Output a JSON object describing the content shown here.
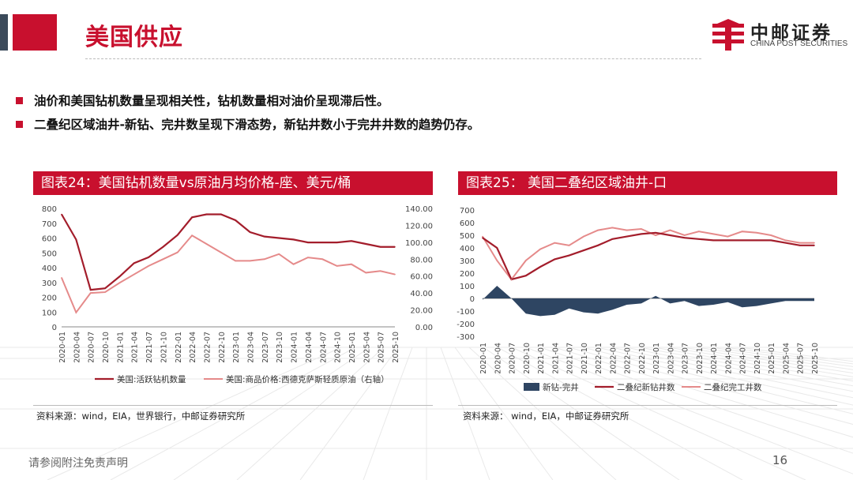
{
  "header": {
    "title": "美国供应",
    "logo_cn": "中邮证券",
    "logo_en": "CHINA POST SECURITIES"
  },
  "bullets": [
    "油价和美国钻机数量呈现相关性，钻机数量相对油价呈现滞后性。",
    "二叠纪区域油井-新钻、完井数呈现下滑态势，新钻井数小于完井井数的趋势仍存。"
  ],
  "footer": {
    "disclaimer": "请参阅附注免责声明",
    "page": "16"
  },
  "colors": {
    "accent": "#c8102e",
    "series_dark_red": "#a31d2b",
    "series_light_red": "#e58a8a",
    "series_navy": "#2e4562"
  },
  "chart_data": [
    {
      "type": "line",
      "title": "图表24：美国钻机数量vs原油月均价格-座、美元/桶",
      "source": "资料来源：wind，EIA，世界银行，中邮证券研究所",
      "x": [
        "2020-01",
        "2020-04",
        "2020-07",
        "2020-10",
        "2021-01",
        "2021-04",
        "2021-07",
        "2021-10",
        "2022-01",
        "2022-04",
        "2022-07",
        "2022-10",
        "2023-01",
        "2023-04",
        "2023-07",
        "2023-10",
        "2024-01",
        "2024-04",
        "2024-07",
        "2024-10",
        "2025-01",
        "2025-04",
        "2025-07",
        "2025-10"
      ],
      "x_tick_labels": [
        "2020-01",
        "2020-04",
        "2020-07",
        "2020-10",
        "2021-01",
        "2021-04",
        "2021-07",
        "2021-10",
        "2022-01",
        "2022-04",
        "2022-07",
        "2022-10",
        "2023-01",
        "2023-04",
        "2023-07",
        "2023-10",
        "2024-01",
        "2024-04",
        "2024-07",
        "2024-10",
        "2025-01",
        "2025-04",
        "2025-07",
        "2025-10"
      ],
      "y_left_range": [
        0,
        800
      ],
      "y_left_ticks": [
        "0",
        "100",
        "200",
        "300",
        "400",
        "500",
        "600",
        "700",
        "800"
      ],
      "y_right_range": [
        0,
        140
      ],
      "y_right_ticks": [
        "0.00",
        "20.00",
        "40.00",
        "60.00",
        "80.00",
        "100.00",
        "120.00",
        "140.00"
      ],
      "grid": false,
      "legend_position": "bottom",
      "series": [
        {
          "name": "美国:活跃钻机数量",
          "axis": "left",
          "values": [
            760,
            590,
            250,
            260,
            340,
            430,
            470,
            540,
            620,
            740,
            760,
            760,
            720,
            640,
            610,
            600,
            590,
            570,
            570,
            570,
            580,
            560,
            540,
            540
          ]
        },
        {
          "name": "美国:商品价格:西德克萨斯轻质原油（右轴）",
          "axis": "right",
          "values": [
            58,
            17,
            40,
            41,
            52,
            62,
            72,
            80,
            88,
            108,
            98,
            88,
            78,
            78,
            80,
            86,
            74,
            82,
            80,
            72,
            74,
            64,
            66,
            62
          ]
        }
      ]
    },
    {
      "type": "line",
      "title": "图表25：  美国二叠纪区域油井-口",
      "source": "资料来源：  wind，EIA，中邮证券研究所",
      "x": [
        "2020-01",
        "2020-04",
        "2020-07",
        "2020-10",
        "2021-01",
        "2021-04",
        "2021-07",
        "2021-10",
        "2022-01",
        "2022-04",
        "2022-07",
        "2022-10",
        "2023-01",
        "2023-04",
        "2023-07",
        "2023-10",
        "2024-01",
        "2024-04",
        "2024-07",
        "2024-10",
        "2025-01",
        "2025-04",
        "2025-07",
        "2025-10"
      ],
      "x_tick_labels": [
        "2020-01",
        "2020-04",
        "2020-07",
        "2020-10",
        "2021-01",
        "2021-04",
        "2021-07",
        "2021-10",
        "2022-01",
        "2022-04",
        "2022-07",
        "2022-10",
        "2023-01",
        "2023-04",
        "2023-07",
        "2023-10",
        "2024-01",
        "2024-04",
        "2024-07",
        "2024-10",
        "2025-01",
        "2025-04",
        "2025-07",
        "2025-10"
      ],
      "y_range": [
        -300,
        700
      ],
      "y_ticks": [
        "-300",
        "-200",
        "-100",
        "0",
        "100",
        "200",
        "300",
        "400",
        "500",
        "600",
        "700"
      ],
      "grid": false,
      "legend_position": "bottom",
      "series": [
        {
          "name": "新钻-完井",
          "kind": "area",
          "values": [
            -10,
            100,
            0,
            -120,
            -140,
            -130,
            -80,
            -110,
            -120,
            -90,
            -50,
            -40,
            20,
            -40,
            -20,
            -60,
            -50,
            -30,
            -70,
            -60,
            -40,
            -20,
            -20,
            -20
          ]
        },
        {
          "name": "二叠纪新钻井数",
          "kind": "line",
          "values": [
            480,
            400,
            150,
            180,
            250,
            310,
            340,
            380,
            420,
            470,
            490,
            510,
            520,
            500,
            480,
            470,
            460,
            460,
            460,
            460,
            460,
            440,
            420,
            420
          ]
        },
        {
          "name": "二叠纪完工井数",
          "kind": "line",
          "values": [
            490,
            300,
            150,
            300,
            390,
            440,
            420,
            490,
            540,
            560,
            540,
            550,
            500,
            540,
            500,
            530,
            510,
            490,
            530,
            520,
            500,
            460,
            440,
            440
          ]
        }
      ]
    }
  ]
}
